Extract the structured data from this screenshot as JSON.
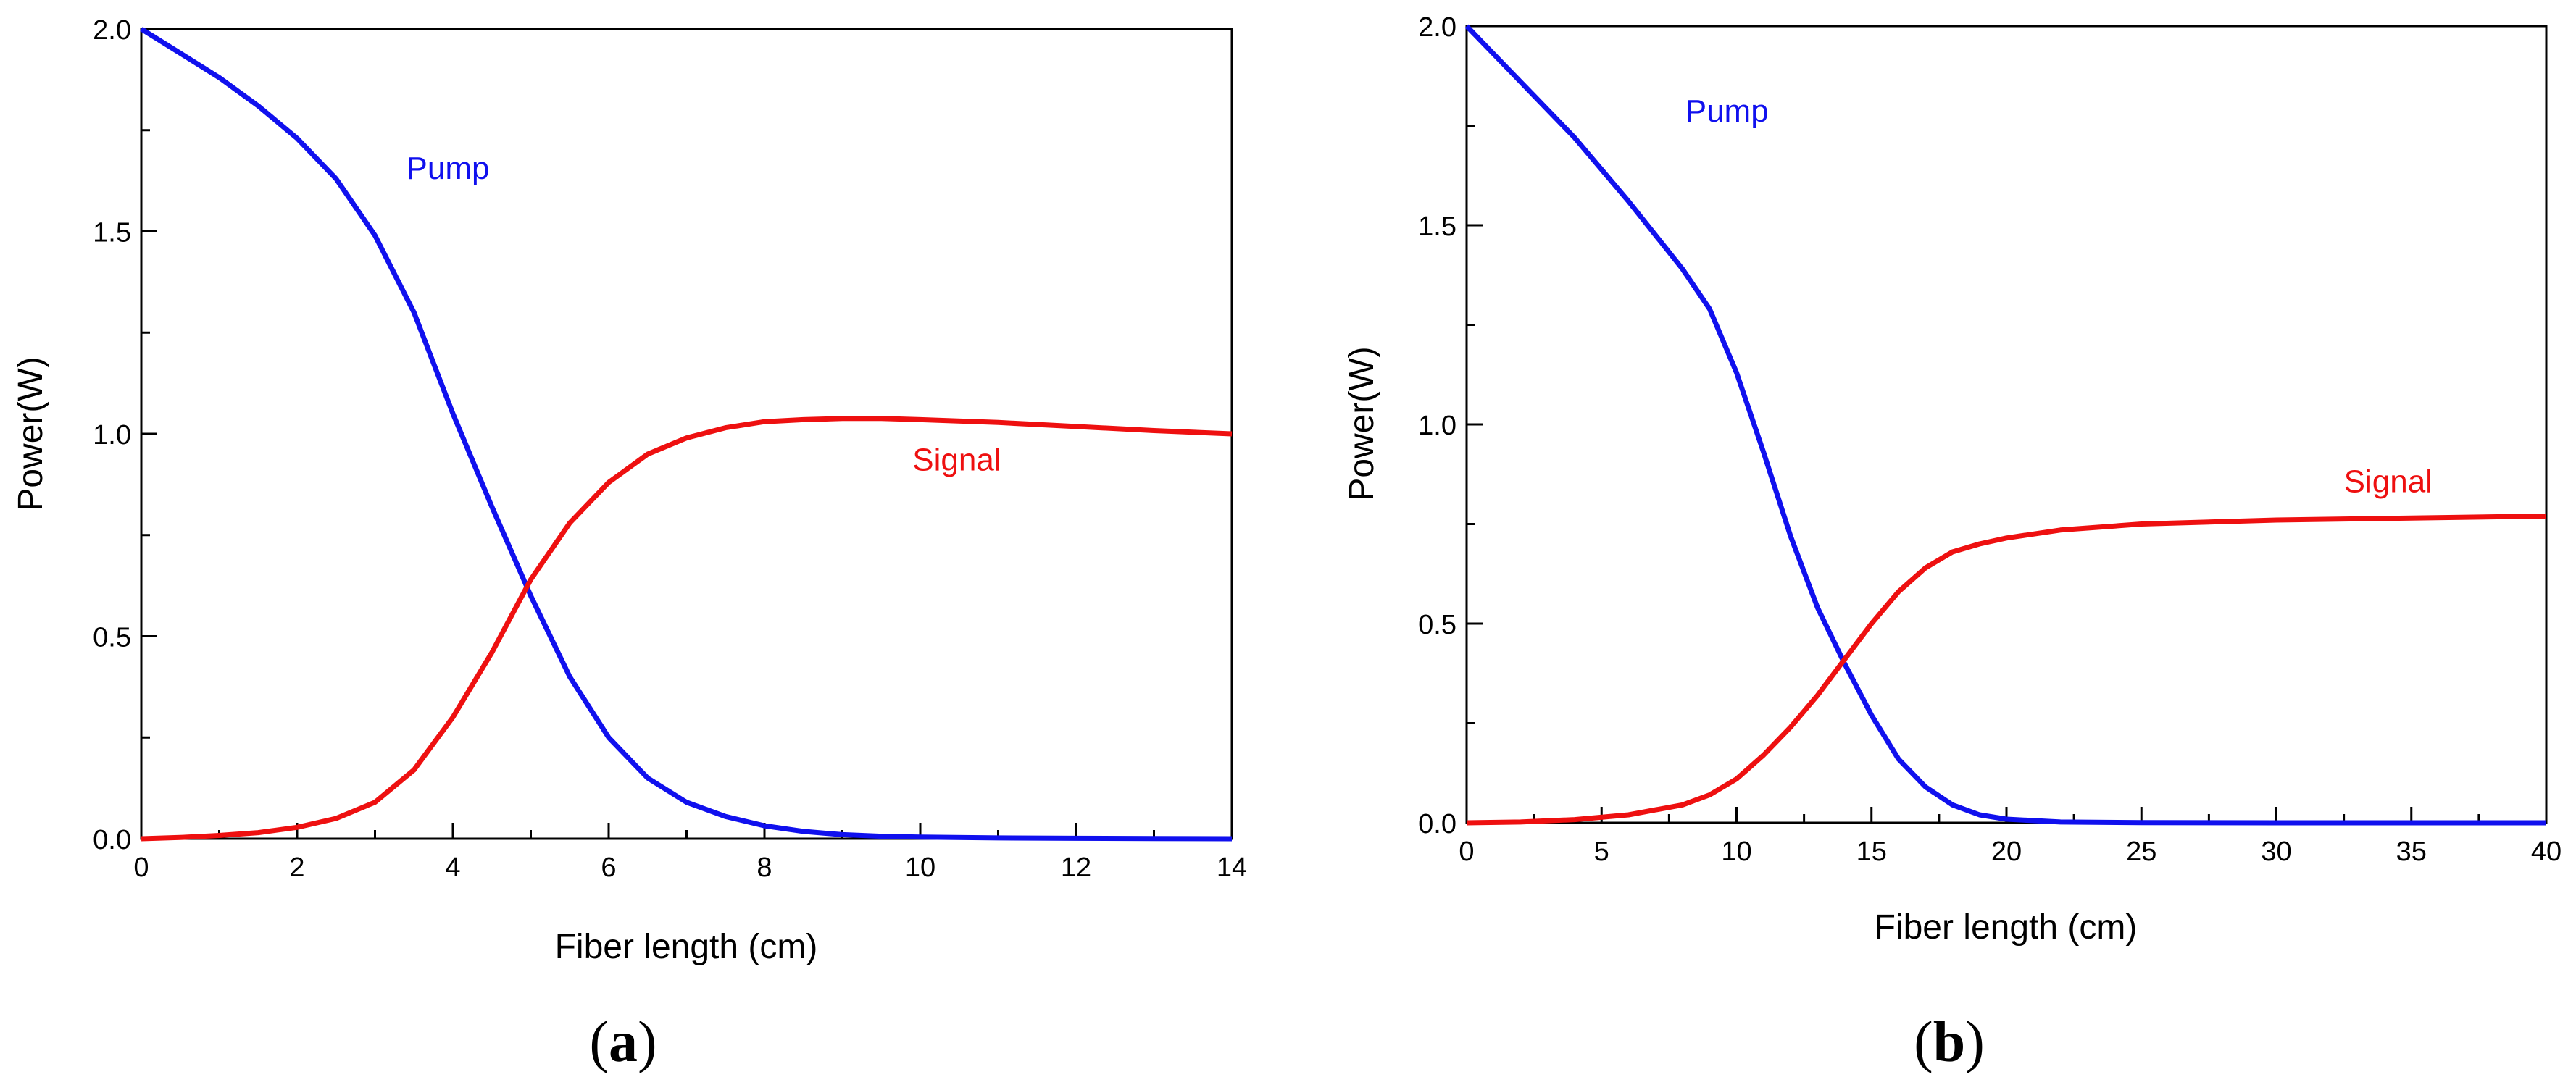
{
  "chart_data": [
    {
      "type": "line",
      "panel_label": {
        "open": "(",
        "letter": "a",
        "close": ")"
      },
      "xlabel": "Fiber length (cm)",
      "ylabel": "Power(W)",
      "xlim": [
        0,
        14
      ],
      "ylim": [
        0,
        2.0
      ],
      "xticks": [
        0,
        2,
        4,
        6,
        8,
        10,
        12,
        14
      ],
      "yticks": [
        0.0,
        0.5,
        1.0,
        1.5,
        2.0
      ],
      "ytick_labels": [
        "0.0",
        "0.5",
        "1.0",
        "1.5",
        "2.0"
      ],
      "grid": false,
      "series": [
        {
          "name": "Pump",
          "color": "#1010ee",
          "label_at": [
            3.4,
            1.63
          ],
          "x": [
            0,
            0.5,
            1.0,
            1.5,
            2.0,
            2.5,
            3.0,
            3.5,
            4.0,
            4.5,
            5.0,
            5.5,
            6.0,
            6.5,
            7.0,
            7.5,
            8.0,
            8.5,
            9.0,
            9.5,
            10.0,
            11.0,
            12.0,
            13.0,
            14.0
          ],
          "values": [
            2.0,
            1.94,
            1.88,
            1.81,
            1.73,
            1.63,
            1.49,
            1.3,
            1.05,
            0.82,
            0.6,
            0.4,
            0.25,
            0.15,
            0.09,
            0.055,
            0.032,
            0.018,
            0.01,
            0.006,
            0.004,
            0.002,
            0.001,
            0.0005,
            0.0
          ]
        },
        {
          "name": "Signal",
          "color": "#ee1010",
          "label_at": [
            9.9,
            0.91
          ],
          "x": [
            0,
            0.5,
            1.0,
            1.5,
            2.0,
            2.5,
            3.0,
            3.5,
            4.0,
            4.5,
            5.0,
            5.5,
            6.0,
            6.5,
            7.0,
            7.5,
            8.0,
            8.5,
            9.0,
            9.5,
            10.0,
            11.0,
            12.0,
            13.0,
            14.0
          ],
          "values": [
            0.0,
            0.003,
            0.008,
            0.015,
            0.028,
            0.05,
            0.09,
            0.17,
            0.3,
            0.46,
            0.64,
            0.78,
            0.88,
            0.95,
            0.99,
            1.015,
            1.03,
            1.035,
            1.038,
            1.038,
            1.035,
            1.028,
            1.018,
            1.008,
            1.0
          ]
        }
      ]
    },
    {
      "type": "line",
      "panel_label": {
        "open": "(",
        "letter": "b",
        "close": ")"
      },
      "xlabel": "Fiber length (cm)",
      "ylabel": "Power(W)",
      "xlim": [
        0,
        40
      ],
      "ylim": [
        0,
        2.0
      ],
      "xticks": [
        0,
        5,
        10,
        15,
        20,
        25,
        30,
        35,
        40
      ],
      "yticks": [
        0.0,
        0.5,
        1.0,
        1.5,
        2.0
      ],
      "ytick_labels": [
        "0.0",
        "0.5",
        "1.0",
        "1.5",
        "2.0"
      ],
      "grid": false,
      "series": [
        {
          "name": "Pump",
          "color": "#1010ee",
          "label_at": [
            8.1,
            1.76
          ],
          "x": [
            0,
            2,
            4,
            6,
            8,
            9,
            10,
            11,
            12,
            13,
            14,
            15,
            16,
            17,
            18,
            19,
            20,
            22,
            25,
            30,
            35,
            40
          ],
          "values": [
            2.0,
            1.86,
            1.72,
            1.56,
            1.39,
            1.29,
            1.13,
            0.93,
            0.72,
            0.54,
            0.4,
            0.27,
            0.16,
            0.09,
            0.045,
            0.02,
            0.009,
            0.002,
            0.0005,
            0.0,
            0.0,
            0.0
          ]
        },
        {
          "name": "Signal",
          "color": "#ee1010",
          "label_at": [
            32.5,
            0.83
          ],
          "x": [
            0,
            2,
            4,
            6,
            8,
            9,
            10,
            11,
            12,
            13,
            14,
            15,
            16,
            17,
            18,
            19,
            20,
            22,
            25,
            30,
            35,
            40
          ],
          "values": [
            0.0,
            0.002,
            0.008,
            0.02,
            0.045,
            0.07,
            0.11,
            0.17,
            0.24,
            0.32,
            0.41,
            0.5,
            0.58,
            0.64,
            0.68,
            0.7,
            0.715,
            0.735,
            0.75,
            0.76,
            0.765,
            0.77
          ]
        }
      ]
    }
  ]
}
